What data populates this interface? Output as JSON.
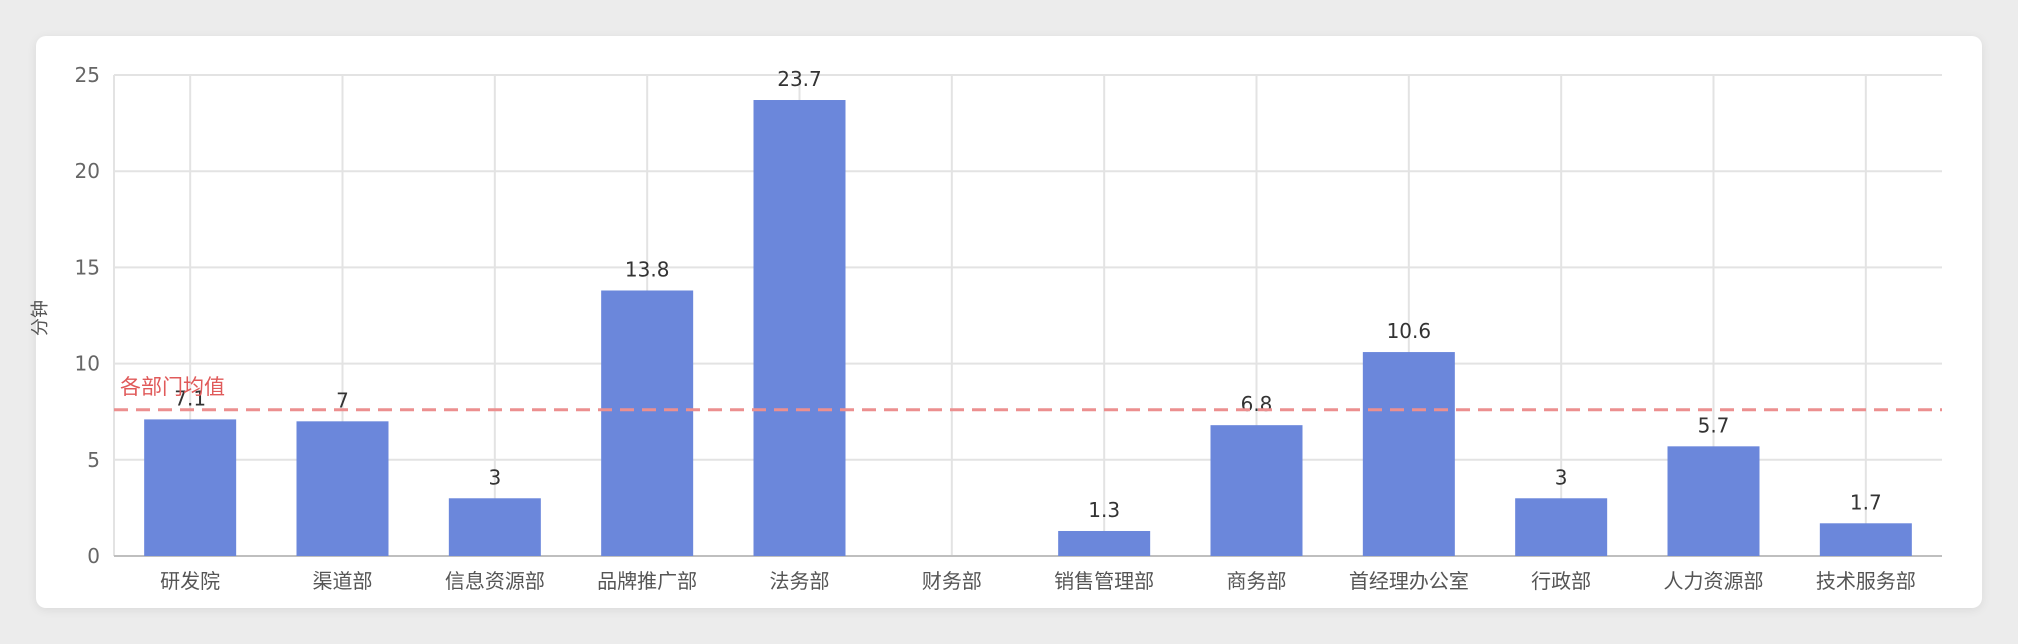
{
  "chart_data": {
    "type": "bar",
    "ylabel": "分钟",
    "ylim": [
      0,
      25
    ],
    "yticks": [
      0,
      5,
      10,
      15,
      20,
      25
    ],
    "categories": [
      "研发院",
      "渠道部",
      "信息资源部",
      "品牌推广部",
      "法务部",
      "财务部",
      "销售管理部",
      "商务部",
      "首经理办公室",
      "行政部",
      "人力资源部",
      "技术服务部"
    ],
    "values": [
      7.1,
      7,
      3,
      13.8,
      23.7,
      0,
      1.3,
      6.8,
      10.6,
      3,
      5.7,
      1.7
    ],
    "value_labels": [
      "7.1",
      "7",
      "3",
      "13.8",
      "23.7",
      "",
      "1.3",
      "6.8",
      "10.6",
      "3",
      "5.7",
      "1.7"
    ],
    "average": {
      "label": "各部门均值",
      "value": 7.6
    },
    "grid": true,
    "colors": {
      "bar": "#6b87db",
      "average_line": "#ec8f8f",
      "average_text": "#e05a5a",
      "grid": "#e3e3e3",
      "axis": "#bfbfbf"
    }
  }
}
